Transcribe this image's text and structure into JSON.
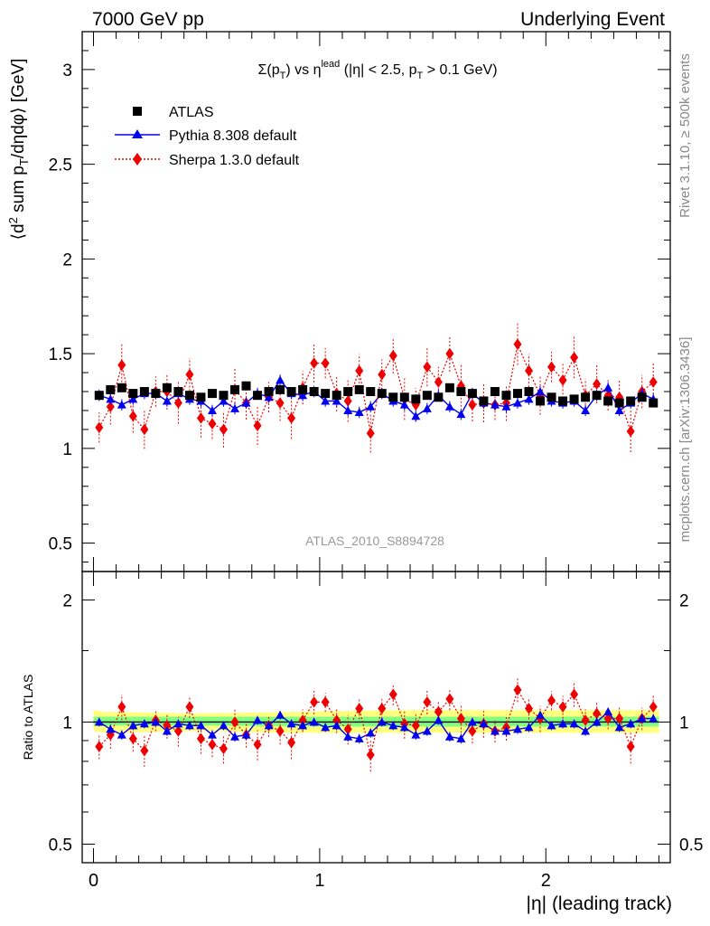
{
  "header": {
    "left": "7000 GeV pp",
    "right": "Underlying Event"
  },
  "right_labels": {
    "rivet": "Rivet 3.1.10, ≥ 500k events",
    "mcplots": "mcplots.cern.ch [arXiv:1306.3436]"
  },
  "colors": {
    "atlas": "#000000",
    "pythia": "#0000ee",
    "sherpa": "#ee0000",
    "band_outer": "#ffff80",
    "band_inner": "#80ff80"
  },
  "chart_data": [
    {
      "type": "scatter",
      "title_parts": {
        "main": "Σ(p",
        "sub1": "T",
        "mid": ") vs η",
        "sup": "lead",
        "tail1": " (|η| < 2.5, p",
        "sub2": "T",
        "tail2": " > 0.1 GeV)"
      },
      "ylabel": "⟨d² sum p_T/dηdφ⟩ [GeV]",
      "ylabel_parts": {
        "a": "⟨d",
        "sup": "2",
        "b": " sum p",
        "sub": "T",
        "c": "/dηdφ⟩ [GeV]"
      },
      "watermark": "ATLAS_2010_S8894728",
      "ylim": [
        0.35,
        3.2
      ],
      "xlim": [
        -0.05,
        2.55
      ],
      "yticks": [
        "0.5",
        "1",
        "1.5",
        "2",
        "2.5",
        "3"
      ],
      "x": [
        0.025,
        0.075,
        0.125,
        0.175,
        0.225,
        0.275,
        0.325,
        0.375,
        0.425,
        0.475,
        0.525,
        0.575,
        0.625,
        0.675,
        0.725,
        0.775,
        0.825,
        0.875,
        0.925,
        0.975,
        1.025,
        1.075,
        1.125,
        1.175,
        1.225,
        1.275,
        1.325,
        1.375,
        1.425,
        1.475,
        1.525,
        1.575,
        1.625,
        1.675,
        1.725,
        1.775,
        1.825,
        1.875,
        1.925,
        1.975,
        2.025,
        2.075,
        2.125,
        2.175,
        2.225,
        2.275,
        2.325,
        2.375,
        2.425,
        2.475
      ],
      "series": [
        {
          "name": "ATLAS",
          "marker": "square",
          "values": [
            1.28,
            1.31,
            1.32,
            1.29,
            1.3,
            1.29,
            1.32,
            1.3,
            1.28,
            1.27,
            1.29,
            1.28,
            1.31,
            1.33,
            1.28,
            1.3,
            1.31,
            1.3,
            1.31,
            1.3,
            1.29,
            1.28,
            1.3,
            1.31,
            1.3,
            1.29,
            1.27,
            1.27,
            1.26,
            1.28,
            1.27,
            1.32,
            1.3,
            1.29,
            1.25,
            1.3,
            1.28,
            1.29,
            1.3,
            1.25,
            1.27,
            1.25,
            1.26,
            1.27,
            1.28,
            1.25,
            1.24,
            1.25,
            1.27,
            1.24
          ]
        },
        {
          "name": "Pythia 8.308 default",
          "marker": "triangle",
          "values": [
            1.28,
            1.26,
            1.23,
            1.26,
            1.29,
            1.29,
            1.25,
            1.29,
            1.26,
            1.25,
            1.2,
            1.25,
            1.21,
            1.24,
            1.29,
            1.27,
            1.36,
            1.29,
            1.28,
            1.3,
            1.25,
            1.25,
            1.2,
            1.19,
            1.22,
            1.29,
            1.25,
            1.23,
            1.17,
            1.21,
            1.28,
            1.22,
            1.18,
            1.29,
            1.24,
            1.23,
            1.22,
            1.24,
            1.26,
            1.3,
            1.25,
            1.24,
            1.25,
            1.2,
            1.28,
            1.32,
            1.2,
            1.24,
            1.29,
            1.26
          ]
        },
        {
          "name": "Sherpa 1.3.0 default",
          "marker": "diamond",
          "values": [
            1.11,
            1.22,
            1.44,
            1.17,
            1.1,
            1.3,
            1.3,
            1.24,
            1.39,
            1.16,
            1.13,
            1.1,
            1.31,
            1.24,
            1.12,
            1.27,
            1.24,
            1.16,
            1.32,
            1.45,
            1.45,
            1.29,
            1.25,
            1.41,
            1.08,
            1.39,
            1.49,
            1.26,
            1.23,
            1.43,
            1.35,
            1.5,
            1.33,
            1.23,
            1.24,
            1.23,
            1.24,
            1.55,
            1.41,
            1.28,
            1.43,
            1.36,
            1.48,
            1.28,
            1.34,
            1.28,
            1.27,
            1.09,
            1.3,
            1.35
          ]
        }
      ]
    },
    {
      "type": "scatter",
      "ylabel": "Ratio to ATLAS",
      "ylim": [
        0.45,
        2.35
      ],
      "xlim": [
        -0.05,
        2.55
      ],
      "yticks": [
        "0.5",
        "1",
        "2"
      ],
      "xticks": [
        "0",
        "1",
        "2"
      ],
      "xlabel": "|η| (leading track)",
      "band_outer": [
        [
          0.0,
          0.95,
          1.07
        ],
        [
          0.05,
          0.94,
          1.06
        ],
        [
          0.45,
          0.95,
          1.05
        ],
        [
          0.9,
          0.94,
          1.06
        ],
        [
          1.35,
          0.94,
          1.07
        ],
        [
          1.9,
          0.94,
          1.07
        ],
        [
          2.3,
          0.94,
          1.07
        ],
        [
          2.5,
          0.94,
          1.07
        ]
      ],
      "band_inner": [
        [
          0.0,
          0.98,
          1.03
        ],
        [
          0.5,
          0.98,
          1.03
        ],
        [
          1.0,
          0.975,
          1.03
        ],
        [
          1.5,
          0.975,
          1.03
        ],
        [
          2.0,
          0.975,
          1.03
        ],
        [
          2.5,
          0.975,
          1.03
        ]
      ],
      "series": [
        {
          "name": "Pythia 8.308 default",
          "values": [
            1.0,
            0.96,
            0.93,
            0.98,
            0.99,
            1.0,
            0.95,
            0.99,
            0.98,
            0.98,
            0.93,
            0.98,
            0.92,
            0.93,
            1.01,
            0.98,
            1.04,
            0.99,
            0.98,
            1.0,
            0.97,
            0.98,
            0.92,
            0.91,
            0.94,
            1.0,
            0.98,
            0.97,
            0.93,
            0.95,
            1.01,
            0.92,
            0.91,
            1.0,
            0.99,
            0.95,
            0.95,
            0.96,
            0.97,
            1.04,
            0.98,
            0.99,
            0.99,
            0.95,
            1.0,
            1.06,
            0.97,
            0.99,
            1.02,
            1.02
          ]
        },
        {
          "name": "Sherpa 1.3.0 default",
          "values": [
            0.87,
            0.93,
            1.09,
            0.91,
            0.85,
            1.01,
            0.98,
            0.95,
            1.09,
            0.91,
            0.88,
            0.86,
            1.0,
            0.93,
            0.88,
            0.98,
            0.95,
            0.89,
            1.01,
            1.12,
            1.12,
            1.01,
            0.96,
            1.08,
            0.83,
            1.08,
            1.17,
            0.99,
            0.98,
            1.12,
            1.06,
            1.14,
            1.02,
            0.95,
            0.99,
            0.95,
            0.97,
            1.2,
            1.08,
            1.02,
            1.13,
            1.09,
            1.17,
            1.01,
            1.05,
            1.02,
            1.02,
            0.87,
            1.02,
            1.09
          ]
        }
      ]
    }
  ]
}
